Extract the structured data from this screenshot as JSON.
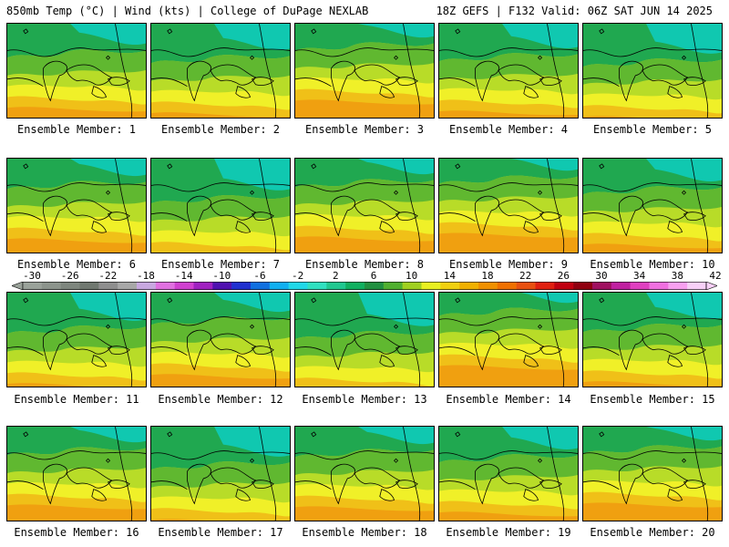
{
  "header": {
    "title": "850mb Temp (°C) | Wind (kts) | College of DuPage NEXLAB",
    "run_info": "18Z GEFS | F132 Valid: 06Z SAT JUN 14 2025"
  },
  "member_label_prefix": "Ensemble Member: ",
  "members": [
    {
      "id": "1"
    },
    {
      "id": "2"
    },
    {
      "id": "3"
    },
    {
      "id": "4"
    },
    {
      "id": "5"
    },
    {
      "id": "6"
    },
    {
      "id": "7"
    },
    {
      "id": "8"
    },
    {
      "id": "9"
    },
    {
      "id": "10"
    },
    {
      "id": "11"
    },
    {
      "id": "12"
    },
    {
      "id": "13"
    },
    {
      "id": "14"
    },
    {
      "id": "15"
    },
    {
      "id": "16"
    },
    {
      "id": "17"
    },
    {
      "id": "18"
    },
    {
      "id": "19"
    },
    {
      "id": "20"
    }
  ],
  "colorbar": {
    "labels": [
      "-30",
      "-26",
      "-22",
      "-18",
      "-14",
      "-10",
      "-6",
      "-2",
      "2",
      "6",
      "10",
      "14",
      "18",
      "22",
      "26",
      "30",
      "34",
      "38",
      "42"
    ],
    "colors": [
      "#9aa29a",
      "#8c948c",
      "#7e867e",
      "#707870",
      "#8e8e8e",
      "#a8a8a8",
      "#c8a8e0",
      "#e070e0",
      "#d040d0",
      "#a020c0",
      "#5010b0",
      "#2030d0",
      "#1070e0",
      "#10b0f0",
      "#20d8e8",
      "#30e0c0",
      "#20c890",
      "#10b060",
      "#209040",
      "#50b030",
      "#a0d020",
      "#e8f020",
      "#f0d010",
      "#f0b000",
      "#f09000",
      "#f07000",
      "#e85010",
      "#e02010",
      "#c00010",
      "#900010",
      "#a01060",
      "#c020a0",
      "#e040c0",
      "#f070e0",
      "#f8a0f0",
      "#f8d0f8"
    ]
  },
  "map_palette": {
    "cold": "#10c8b0",
    "cool": "#20a850",
    "mid": "#60b830",
    "lime": "#b8dc28",
    "yellow": "#f0f028",
    "warm": "#f0c018",
    "hot": "#f0a010"
  }
}
